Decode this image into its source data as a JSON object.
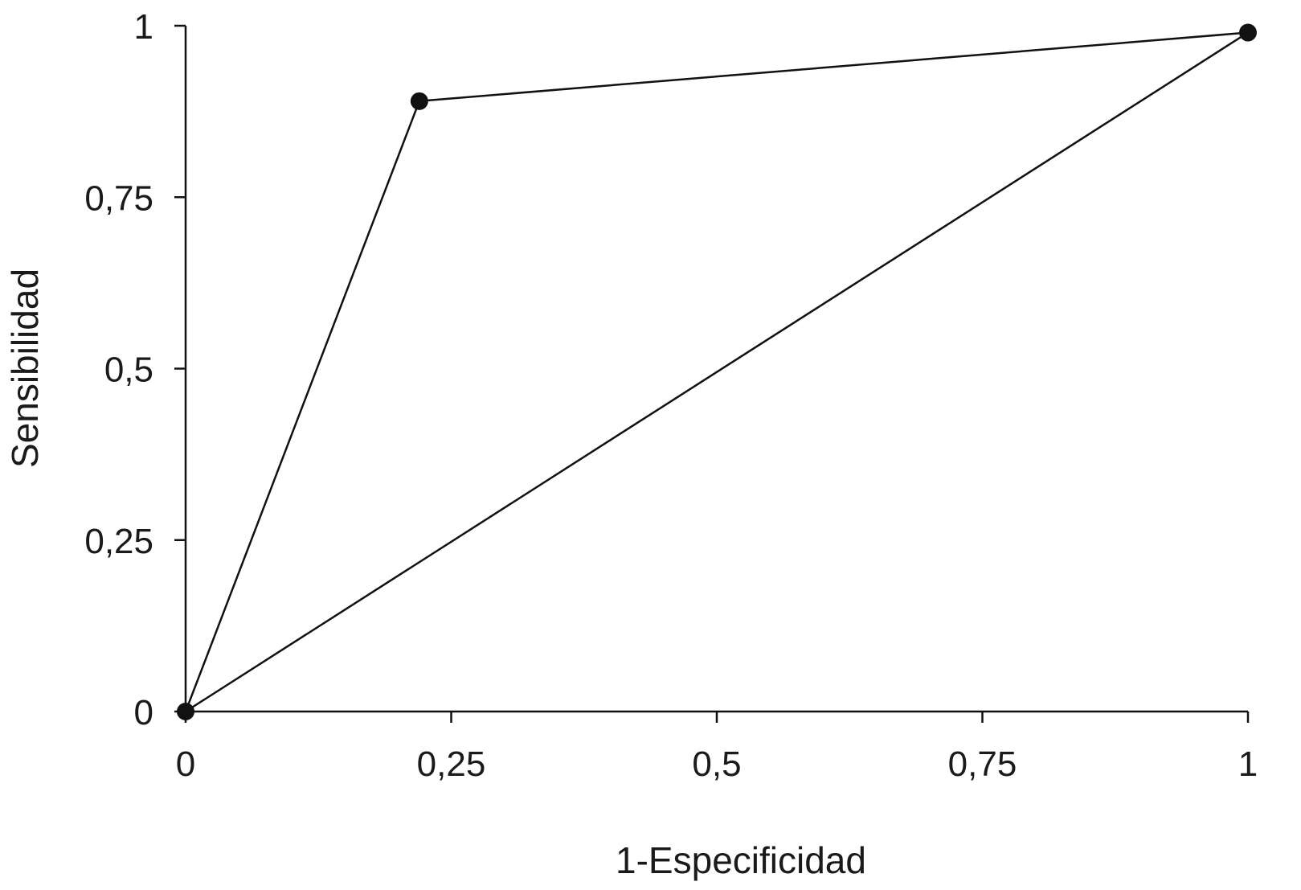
{
  "chart_data": {
    "type": "line",
    "xlabel": "1-Especificidad",
    "ylabel": "Sensibilidad",
    "xlim": [
      0,
      1
    ],
    "ylim": [
      0,
      1
    ],
    "grid": false,
    "x_ticks": [
      {
        "value": 0,
        "label": "0"
      },
      {
        "value": 0.25,
        "label": "0,25"
      },
      {
        "value": 0.5,
        "label": "0,5"
      },
      {
        "value": 0.75,
        "label": "0,75"
      },
      {
        "value": 1,
        "label": "1"
      }
    ],
    "y_ticks": [
      {
        "value": 0,
        "label": "0"
      },
      {
        "value": 0.25,
        "label": "0,25"
      },
      {
        "value": 0.5,
        "label": "0,5"
      },
      {
        "value": 0.75,
        "label": "0,75"
      },
      {
        "value": 1,
        "label": "1"
      }
    ],
    "series": [
      {
        "x": [
          0,
          0.22,
          1
        ],
        "y": [
          0,
          0.89,
          0.99
        ],
        "markers": true
      },
      {
        "x": [
          0,
          1
        ],
        "y": [
          0,
          0.99
        ],
        "markers": false
      }
    ],
    "colors": {
      "line": "#111111",
      "marker": "#111111",
      "axis": "#111111",
      "text": "#1a1a1a"
    }
  }
}
